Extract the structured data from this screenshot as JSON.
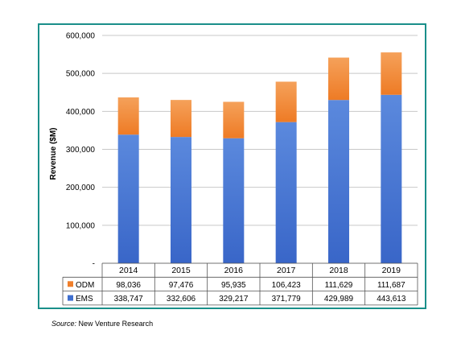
{
  "chart_data": {
    "type": "bar",
    "stacked": true,
    "categories": [
      "2014",
      "2015",
      "2016",
      "2017",
      "2018",
      "2019"
    ],
    "series": [
      {
        "name": "ODM",
        "values": [
          98036,
          97476,
          95935,
          106423,
          111629,
          111687
        ],
        "color": "#f07f2b",
        "color_light": "#f5a15a"
      },
      {
        "name": "EMS",
        "values": [
          338747,
          332606,
          329217,
          371779,
          429989,
          443613
        ],
        "color": "#3f6fcf",
        "color_light": "#5b89dd"
      }
    ],
    "value_labels": {
      "ODM": [
        "98,036",
        "97,476",
        "95,935",
        "106,423",
        "111,629",
        "111,687"
      ],
      "EMS": [
        "338,747",
        "332,606",
        "329,217",
        "371,779",
        "429,989",
        "443,613"
      ]
    },
    "ylabel": "Revenue ($M)",
    "ylim": [
      0,
      600000
    ],
    "yticks": [
      "-",
      "100,000",
      "200,000",
      "300,000",
      "400,000",
      "500,000",
      "600,000"
    ],
    "grid": true,
    "legend": "data-table-left",
    "frame_color": "#1a8f8a"
  },
  "source": {
    "prefix": "Source:",
    "text": "New Venture Research"
  }
}
